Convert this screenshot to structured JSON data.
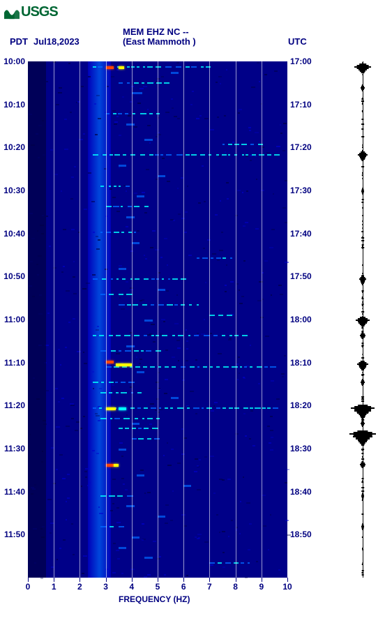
{
  "logo": {
    "text": "USGS"
  },
  "header": {
    "tz_left": "PDT",
    "date": "Jul18,2023",
    "station": "MEM EHZ NC --",
    "location": "(East Mammoth )",
    "tz_right": "UTC"
  },
  "spectrogram": {
    "type": "heatmap",
    "xlim": [
      0,
      10
    ],
    "xlabel": "FREQUENCY (HZ)",
    "xticks": [
      0,
      1,
      2,
      3,
      4,
      5,
      6,
      7,
      8,
      9,
      10
    ],
    "y_left_ticks": [
      "10:00",
      "10:10",
      "10:20",
      "10:30",
      "10:40",
      "10:50",
      "11:00",
      "11:10",
      "11:20",
      "11:30",
      "11:40",
      "11:50"
    ],
    "y_right_ticks": [
      "17:00",
      "17:10",
      "17:20",
      "17:30",
      "17:40",
      "17:50",
      "18:00",
      "18:10",
      "18:20",
      "18:30",
      "18:40",
      "18:50"
    ],
    "grid_color": "#ffffff",
    "background_color": "#000088",
    "colormap": {
      "low": "#000044",
      "mid_low": "#0000cc",
      "mid": "#0066ff",
      "mid_high": "#00ffff",
      "high": "#ffff00",
      "peak": "#ff4400"
    },
    "band_column": {
      "freq_start": 2.3,
      "freq_end": 3.2,
      "intensity": "mid"
    },
    "hot_events": [
      {
        "t": 0.01,
        "freq": 3.0,
        "w": 0.3,
        "color": "peak"
      },
      {
        "t": 0.01,
        "freq": 3.5,
        "w": 0.2,
        "color": "high"
      },
      {
        "t": 0.58,
        "freq": 3.0,
        "w": 0.3,
        "color": "peak"
      },
      {
        "t": 0.585,
        "freq": 3.4,
        "w": 0.6,
        "color": "high"
      },
      {
        "t": 0.67,
        "freq": 3.0,
        "w": 0.4,
        "color": "high"
      },
      {
        "t": 0.67,
        "freq": 3.5,
        "w": 0.3,
        "color": "mid_high"
      },
      {
        "t": 0.78,
        "freq": 3.0,
        "w": 0.3,
        "color": "peak"
      },
      {
        "t": 0.78,
        "freq": 3.3,
        "w": 0.2,
        "color": "high"
      }
    ],
    "bright_streaks": [
      {
        "t": 0.01,
        "freq_start": 2.5,
        "freq_end": 7.0
      },
      {
        "t": 0.04,
        "freq_start": 3.5,
        "freq_end": 5.5
      },
      {
        "t": 0.1,
        "freq_start": 3.0,
        "freq_end": 5.0
      },
      {
        "t": 0.16,
        "freq_start": 7.5,
        "freq_end": 9.0
      },
      {
        "t": 0.18,
        "freq_start": 2.5,
        "freq_end": 9.5
      },
      {
        "t": 0.24,
        "freq_start": 2.8,
        "freq_end": 4.0
      },
      {
        "t": 0.28,
        "freq_start": 3.0,
        "freq_end": 4.5
      },
      {
        "t": 0.33,
        "freq_start": 2.8,
        "freq_end": 4.2
      },
      {
        "t": 0.38,
        "freq_start": 6.5,
        "freq_end": 8.0
      },
      {
        "t": 0.42,
        "freq_start": 2.5,
        "freq_end": 6.0
      },
      {
        "t": 0.45,
        "freq_start": 2.8,
        "freq_end": 4.0
      },
      {
        "t": 0.47,
        "freq_start": 3.5,
        "freq_end": 6.5
      },
      {
        "t": 0.49,
        "freq_start": 7.0,
        "freq_end": 7.8
      },
      {
        "t": 0.53,
        "freq_start": 2.5,
        "freq_end": 8.5
      },
      {
        "t": 0.56,
        "freq_start": 2.8,
        "freq_end": 5.0
      },
      {
        "t": 0.59,
        "freq_start": 3.0,
        "freq_end": 9.5
      },
      {
        "t": 0.62,
        "freq_start": 2.5,
        "freq_end": 4.0
      },
      {
        "t": 0.64,
        "freq_start": 2.8,
        "freq_end": 4.5
      },
      {
        "t": 0.67,
        "freq_start": 2.5,
        "freq_end": 9.8
      },
      {
        "t": 0.69,
        "freq_start": 2.8,
        "freq_end": 5.0
      },
      {
        "t": 0.71,
        "freq_start": 3.5,
        "freq_end": 5.0
      },
      {
        "t": 0.73,
        "freq_start": 4.0,
        "freq_end": 5.0
      },
      {
        "t": 0.84,
        "freq_start": 2.8,
        "freq_end": 4.0
      },
      {
        "t": 0.9,
        "freq_start": 2.8,
        "freq_end": 3.8
      },
      {
        "t": 0.97,
        "freq_start": 7.0,
        "freq_end": 8.5
      }
    ],
    "mid_noise": [
      {
        "t": 0.02,
        "freq": 5.5,
        "w": 0.3
      },
      {
        "t": 0.06,
        "freq": 4.0,
        "w": 0.4
      },
      {
        "t": 0.12,
        "freq": 3.8,
        "w": 0.3
      },
      {
        "t": 0.15,
        "freq": 4.5,
        "w": 0.3
      },
      {
        "t": 0.2,
        "freq": 3.5,
        "w": 0.3
      },
      {
        "t": 0.22,
        "freq": 5.0,
        "w": 0.3
      },
      {
        "t": 0.26,
        "freq": 4.2,
        "w": 0.3
      },
      {
        "t": 0.3,
        "freq": 3.8,
        "w": 0.3
      },
      {
        "t": 0.35,
        "freq": 4.0,
        "w": 0.3
      },
      {
        "t": 0.4,
        "freq": 3.5,
        "w": 0.3
      },
      {
        "t": 0.44,
        "freq": 5.0,
        "w": 0.3
      },
      {
        "t": 0.5,
        "freq": 4.5,
        "w": 0.3
      },
      {
        "t": 0.55,
        "freq": 3.8,
        "w": 0.3
      },
      {
        "t": 0.6,
        "freq": 4.2,
        "w": 0.3
      },
      {
        "t": 0.65,
        "freq": 5.5,
        "w": 0.3
      },
      {
        "t": 0.7,
        "freq": 4.0,
        "w": 0.3
      },
      {
        "t": 0.75,
        "freq": 3.5,
        "w": 0.3
      },
      {
        "t": 0.8,
        "freq": 4.2,
        "w": 0.3
      },
      {
        "t": 0.82,
        "freq": 6.0,
        "w": 0.3
      },
      {
        "t": 0.86,
        "freq": 3.8,
        "w": 0.3
      },
      {
        "t": 0.88,
        "freq": 5.0,
        "w": 0.3
      },
      {
        "t": 0.92,
        "freq": 4.0,
        "w": 0.3
      },
      {
        "t": 0.94,
        "freq": 3.5,
        "w": 0.3
      },
      {
        "t": 0.96,
        "freq": 4.5,
        "w": 0.3
      }
    ]
  },
  "seismo_trace": {
    "baseline": 0.5,
    "bursts": [
      {
        "t": 0.01,
        "amp": 0.6
      },
      {
        "t": 0.015,
        "amp": 0.3
      },
      {
        "t": 0.05,
        "amp": 0.15
      },
      {
        "t": 0.18,
        "amp": 0.35
      },
      {
        "t": 0.185,
        "amp": 0.2
      },
      {
        "t": 0.25,
        "amp": 0.1
      },
      {
        "t": 0.42,
        "amp": 0.25
      },
      {
        "t": 0.425,
        "amp": 0.15
      },
      {
        "t": 0.5,
        "amp": 0.5
      },
      {
        "t": 0.505,
        "amp": 0.3
      },
      {
        "t": 0.53,
        "amp": 0.2
      },
      {
        "t": 0.585,
        "amp": 0.4
      },
      {
        "t": 0.59,
        "amp": 0.25
      },
      {
        "t": 0.62,
        "amp": 0.15
      },
      {
        "t": 0.67,
        "amp": 0.85
      },
      {
        "t": 0.675,
        "amp": 0.6
      },
      {
        "t": 0.68,
        "amp": 0.4
      },
      {
        "t": 0.685,
        "amp": 0.2
      },
      {
        "t": 0.7,
        "amp": 0.15
      },
      {
        "t": 0.72,
        "amp": 0.95
      },
      {
        "t": 0.725,
        "amp": 0.7
      },
      {
        "t": 0.73,
        "amp": 0.5
      },
      {
        "t": 0.735,
        "amp": 0.3
      },
      {
        "t": 0.78,
        "amp": 0.2
      },
      {
        "t": 0.84,
        "amp": 0.1
      },
      {
        "t": 0.9,
        "amp": 0.1
      }
    ]
  }
}
